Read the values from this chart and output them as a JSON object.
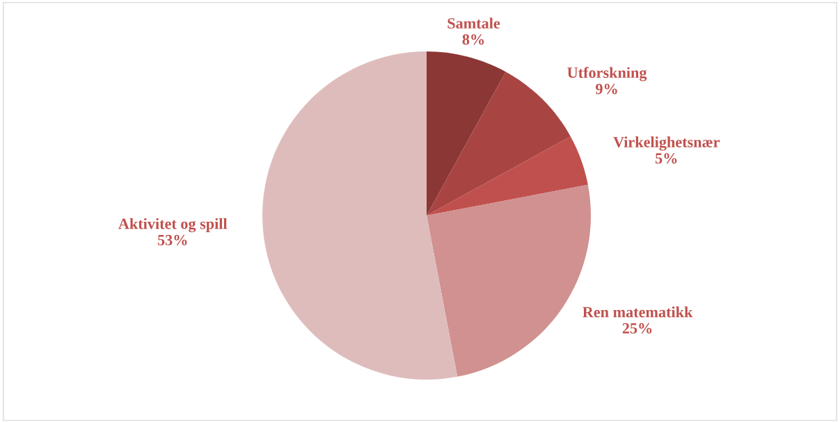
{
  "chart_data": {
    "type": "pie",
    "categories": [
      "Samtale",
      "Utforskning",
      "Virkelighetsnær",
      "Ren matematikk",
      "Aktivitet og spill"
    ],
    "values": [
      8,
      9,
      5,
      25,
      53
    ],
    "value_labels": [
      "8%",
      "9%",
      "5%",
      "25%",
      "53%"
    ],
    "colors": [
      "#8b3735",
      "#a84543",
      "#c0504d",
      "#d09190",
      "#dfbcbc"
    ],
    "legend": false
  }
}
